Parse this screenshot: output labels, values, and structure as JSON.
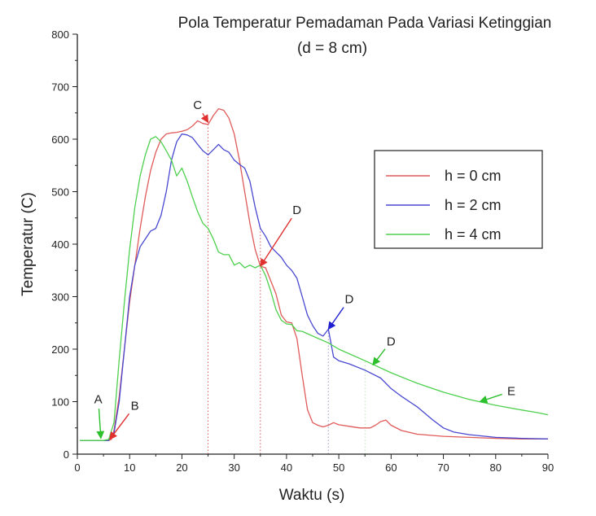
{
  "chart_data": {
    "type": "line",
    "title": "Pola Temperatur Pemadaman Pada Variasi Ketinggian",
    "subtitle": "(d = 8 cm)",
    "xlabel": "Waktu (s)",
    "ylabel": "Temperatur (C)",
    "xlim": [
      0,
      90
    ],
    "ylim": [
      0,
      800
    ],
    "x_ticks": [
      0,
      10,
      20,
      30,
      40,
      50,
      60,
      70,
      80,
      90
    ],
    "y_ticks": [
      0,
      100,
      200,
      300,
      400,
      500,
      600,
      700,
      800
    ],
    "grid": false,
    "legend_position": "right",
    "series": [
      {
        "name": "h = 0 cm",
        "color": "#e05a5a",
        "points": [
          [
            0.5,
            26
          ],
          [
            6,
            26
          ],
          [
            6.5,
            28
          ],
          [
            7,
            45
          ],
          [
            8,
            110
          ],
          [
            9,
            200
          ],
          [
            10,
            290
          ],
          [
            11,
            360
          ],
          [
            12,
            430
          ],
          [
            13,
            490
          ],
          [
            14,
            540
          ],
          [
            15,
            575
          ],
          [
            16,
            600
          ],
          [
            17,
            610
          ],
          [
            18,
            612
          ],
          [
            19,
            613
          ],
          [
            20,
            615
          ],
          [
            21,
            618
          ],
          [
            22,
            625
          ],
          [
            23,
            635
          ],
          [
            24,
            630
          ],
          [
            25,
            628
          ],
          [
            26,
            645
          ],
          [
            27,
            658
          ],
          [
            28,
            655
          ],
          [
            29,
            640
          ],
          [
            30,
            610
          ],
          [
            31,
            560
          ],
          [
            32,
            500
          ],
          [
            33,
            440
          ],
          [
            34,
            390
          ],
          [
            35,
            358
          ],
          [
            36,
            355
          ],
          [
            37,
            330
          ],
          [
            38,
            305
          ],
          [
            39,
            265
          ],
          [
            40,
            252
          ],
          [
            41,
            250
          ],
          [
            42,
            220
          ],
          [
            43,
            150
          ],
          [
            44,
            85
          ],
          [
            45,
            60
          ],
          [
            46,
            55
          ],
          [
            47,
            52
          ],
          [
            48,
            55
          ],
          [
            49,
            60
          ],
          [
            50,
            56
          ],
          [
            52,
            53
          ],
          [
            54,
            50
          ],
          [
            56,
            50
          ],
          [
            57,
            55
          ],
          [
            58,
            62
          ],
          [
            59,
            65
          ],
          [
            60,
            55
          ],
          [
            62,
            45
          ],
          [
            65,
            38
          ],
          [
            70,
            34
          ],
          [
            75,
            32
          ],
          [
            80,
            30
          ],
          [
            85,
            29
          ],
          [
            90,
            29
          ]
        ]
      },
      {
        "name": "h = 2 cm",
        "color": "#4848d0",
        "points": [
          [
            0.5,
            26
          ],
          [
            6,
            26
          ],
          [
            7,
            40
          ],
          [
            8,
            100
          ],
          [
            9,
            200
          ],
          [
            10,
            300
          ],
          [
            11,
            360
          ],
          [
            12,
            395
          ],
          [
            13,
            410
          ],
          [
            14,
            425
          ],
          [
            15,
            430
          ],
          [
            16,
            455
          ],
          [
            17,
            500
          ],
          [
            18,
            560
          ],
          [
            19,
            595
          ],
          [
            20,
            610
          ],
          [
            21,
            608
          ],
          [
            22,
            603
          ],
          [
            23,
            590
          ],
          [
            24,
            578
          ],
          [
            25,
            570
          ],
          [
            26,
            580
          ],
          [
            27,
            590
          ],
          [
            28,
            580
          ],
          [
            29,
            575
          ],
          [
            30,
            560
          ],
          [
            31,
            552
          ],
          [
            32,
            545
          ],
          [
            33,
            520
          ],
          [
            34,
            470
          ],
          [
            35,
            430
          ],
          [
            36,
            415
          ],
          [
            37,
            395
          ],
          [
            38,
            385
          ],
          [
            39,
            375
          ],
          [
            40,
            360
          ],
          [
            41,
            350
          ],
          [
            42,
            335
          ],
          [
            43,
            300
          ],
          [
            44,
            265
          ],
          [
            45,
            245
          ],
          [
            46,
            230
          ],
          [
            47,
            225
          ],
          [
            48,
            238
          ],
          [
            49,
            185
          ],
          [
            50,
            178
          ],
          [
            52,
            172
          ],
          [
            55,
            160
          ],
          [
            58,
            145
          ],
          [
            60,
            125
          ],
          [
            62,
            110
          ],
          [
            65,
            90
          ],
          [
            68,
            65
          ],
          [
            70,
            50
          ],
          [
            72,
            42
          ],
          [
            75,
            37
          ],
          [
            80,
            32
          ],
          [
            85,
            30
          ],
          [
            90,
            29
          ]
        ]
      },
      {
        "name": "h = 4 cm",
        "color": "#4ed04e",
        "points": [
          [
            0.5,
            26
          ],
          [
            5,
            26
          ],
          [
            6,
            28
          ],
          [
            7,
            60
          ],
          [
            8,
            180
          ],
          [
            9,
            290
          ],
          [
            10,
            390
          ],
          [
            11,
            470
          ],
          [
            12,
            530
          ],
          [
            13,
            570
          ],
          [
            14,
            600
          ],
          [
            15,
            605
          ],
          [
            16,
            595
          ],
          [
            17,
            578
          ],
          [
            18,
            560
          ],
          [
            19,
            530
          ],
          [
            20,
            545
          ],
          [
            21,
            520
          ],
          [
            22,
            490
          ],
          [
            23,
            462
          ],
          [
            24,
            440
          ],
          [
            25,
            430
          ],
          [
            26,
            410
          ],
          [
            27,
            385
          ],
          [
            28,
            380
          ],
          [
            29,
            380
          ],
          [
            30,
            360
          ],
          [
            31,
            365
          ],
          [
            32,
            355
          ],
          [
            33,
            360
          ],
          [
            34,
            355
          ],
          [
            35,
            360
          ],
          [
            36,
            340
          ],
          [
            37,
            310
          ],
          [
            38,
            275
          ],
          [
            39,
            255
          ],
          [
            40,
            248
          ],
          [
            41,
            247
          ],
          [
            42,
            235
          ],
          [
            43,
            234
          ],
          [
            45,
            225
          ],
          [
            48,
            212
          ],
          [
            50,
            200
          ],
          [
            55,
            178
          ],
          [
            60,
            155
          ],
          [
            65,
            135
          ],
          [
            70,
            118
          ],
          [
            75,
            104
          ],
          [
            80,
            93
          ],
          [
            85,
            84
          ],
          [
            88,
            79
          ],
          [
            90,
            75
          ]
        ]
      }
    ],
    "markers": [
      {
        "x": 25,
        "color": "#e05a5a"
      },
      {
        "x": 35,
        "color": "#e05a5a"
      },
      {
        "x": 48,
        "color": "#9a9ac8"
      },
      {
        "x": 55,
        "color": "#b8e6b8"
      }
    ],
    "annotations": [
      {
        "label": "A",
        "tx": 4,
        "ty": 105,
        "ax": 4.5,
        "ay": 30,
        "color": "#2cc02c"
      },
      {
        "label": "B",
        "tx": 11,
        "ty": 92,
        "ax": 6.2,
        "ay": 28,
        "color": "#e03030"
      },
      {
        "label": "C",
        "tx": 23,
        "ty": 665,
        "ax": 25,
        "ay": 632,
        "color": "#e03030"
      },
      {
        "label": "D",
        "tx": 42,
        "ty": 465,
        "ax": 35,
        "ay": 358,
        "color": "#e03030"
      },
      {
        "label": "D",
        "tx": 52,
        "ty": 295,
        "ax": 48,
        "ay": 238,
        "color": "#2020d0"
      },
      {
        "label": "D",
        "tx": 60,
        "ty": 215,
        "ax": 56.5,
        "ay": 170,
        "color": "#2cc02c"
      },
      {
        "label": "E",
        "tx": 83,
        "ty": 120,
        "ax": 77,
        "ay": 100,
        "color": "#2cc02c"
      }
    ]
  }
}
